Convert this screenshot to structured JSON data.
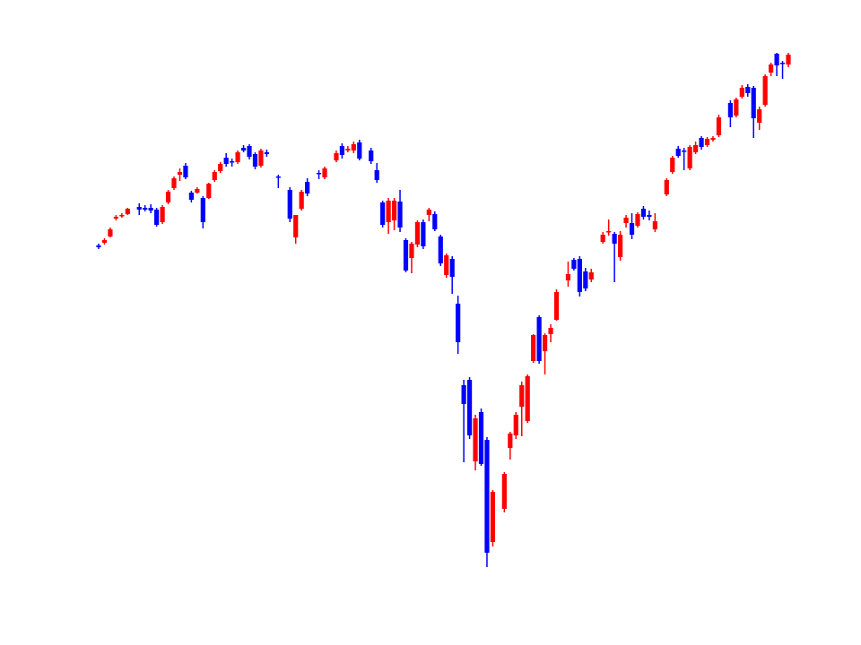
{
  "chart_data": {
    "type": "candlestick",
    "x": [
      0,
      1,
      2,
      3,
      4,
      5,
      7,
      8,
      9,
      10,
      11,
      12,
      13,
      14,
      15,
      16,
      17,
      18,
      19,
      20,
      21,
      22,
      23,
      24,
      25,
      26,
      27,
      28,
      29,
      31,
      33,
      34,
      35,
      36,
      38,
      39,
      41,
      42,
      43,
      44,
      45,
      47,
      48,
      49,
      50,
      51,
      52,
      53,
      54,
      55,
      56,
      57,
      58,
      59,
      60,
      61,
      62,
      63,
      64,
      65,
      66,
      67,
      68,
      70,
      71,
      72,
      73,
      74,
      75,
      76,
      77,
      78,
      79,
      81,
      82,
      83,
      84,
      85,
      87,
      88,
      89,
      90,
      91,
      92,
      93,
      94,
      95,
      96,
      98,
      99,
      100,
      101,
      102,
      103,
      104,
      105,
      106,
      107,
      109,
      110,
      111,
      112,
      113,
      114,
      115,
      116,
      117,
      118,
      119
    ],
    "open": [
      446,
      449,
      456,
      476,
      479,
      481,
      489,
      488,
      488,
      486,
      472,
      494,
      510,
      525,
      535,
      505,
      505,
      499,
      499,
      519,
      529,
      544,
      540,
      539,
      555,
      557,
      548,
      535,
      550,
      523,
      508,
      455,
      487,
      517,
      527,
      522,
      541,
      557,
      552,
      552,
      561,
      552,
      530,
      494,
      472,
      474,
      495,
      452,
      432,
      447,
      472,
      480,
      481,
      456,
      413,
      431,
      381,
      290,
      296,
      205,
      260,
      229,
      115,
      152,
      220,
      234,
      266,
      250,
      317,
      366,
      328,
      347,
      363,
      407,
      430,
      431,
      417,
      408,
      450,
      461,
      459,
      433,
      471,
      471,
      468,
      487,
      480,
      464,
      503,
      528,
      554,
      552,
      532,
      550,
      566,
      558,
      564,
      569,
      605,
      591,
      612,
      623,
      622,
      583,
      603,
      639,
      660,
      650,
      648
    ],
    "high": [
      448,
      454,
      466,
      480,
      482,
      488,
      493,
      491,
      492,
      488,
      491,
      508,
      523,
      532,
      538,
      507,
      511,
      501,
      516,
      530,
      539,
      549,
      543,
      552,
      558,
      559,
      550,
      554,
      553,
      525,
      511,
      480,
      508,
      521,
      530,
      534,
      552,
      560,
      557,
      562,
      564,
      555,
      538,
      496,
      499,
      499,
      508,
      454,
      450,
      474,
      475,
      488,
      484,
      458,
      437,
      434,
      390,
      296,
      299,
      257,
      264,
      232,
      173,
      193,
      238,
      260,
      294,
      302,
      347,
      368,
      348,
      358,
      397,
      428,
      432,
      434,
      421,
      420,
      461,
      475,
      461,
      462,
      480,
      482,
      483,
      490,
      485,
      482,
      521,
      546,
      557,
      555,
      558,
      562,
      568,
      567,
      568,
      592,
      608,
      611,
      625,
      626,
      624,
      601,
      637,
      650,
      661,
      652,
      661
    ],
    "low": [
      442,
      447,
      455,
      474,
      477,
      480,
      480,
      484,
      482,
      467,
      470,
      492,
      508,
      518,
      520,
      494,
      504,
      465,
      498,
      517,
      527,
      534,
      534,
      537,
      550,
      542,
      531,
      533,
      545,
      510,
      472,
      448,
      485,
      501,
      520,
      520,
      539,
      543,
      550,
      549,
      541,
      537,
      516,
      466,
      459,
      463,
      461,
      416,
      415,
      444,
      442,
      473,
      462,
      423,
      410,
      392,
      325,
      204,
      230,
      195,
      200,
      87,
      110,
      148,
      207,
      230,
      233,
      248,
      315,
      314,
      302,
      338,
      362,
      400,
      418,
      389,
      395,
      405,
      448,
      457,
      405,
      429,
      466,
      453,
      466,
      475,
      474,
      461,
      501,
      526,
      544,
      530,
      530,
      548,
      553,
      556,
      562,
      567,
      578,
      589,
      610,
      612,
      566,
      575,
      601,
      635,
      635,
      632,
      645
    ],
    "close": [
      444,
      452,
      464,
      478,
      480,
      487,
      486,
      486,
      485,
      469,
      489,
      506,
      521,
      528,
      522,
      497,
      509,
      472,
      515,
      528,
      537,
      537,
      539,
      550,
      552,
      545,
      534,
      552,
      548,
      522,
      476,
      480,
      506,
      504,
      526,
      532,
      549,
      547,
      554,
      559,
      543,
      540,
      519,
      469,
      496,
      496,
      466,
      418,
      448,
      472,
      445,
      486,
      464,
      426,
      435,
      411,
      338,
      269,
      234,
      253,
      202,
      103,
      171,
      191,
      236,
      257,
      290,
      300,
      346,
      317,
      346,
      354,
      394,
      414,
      420,
      394,
      398,
      416,
      458,
      462,
      448,
      458,
      477,
      458,
      481,
      478,
      478,
      473,
      519,
      544,
      546,
      551,
      556,
      558,
      556,
      565,
      566,
      589,
      589,
      609,
      622,
      616,
      588,
      598,
      635,
      648,
      647,
      649,
      659
    ],
    "up_color": "#ff0000",
    "down_color": "#0000ff",
    "xlim": [
      0,
      119
    ],
    "ylim": [
      0,
      720
    ]
  }
}
